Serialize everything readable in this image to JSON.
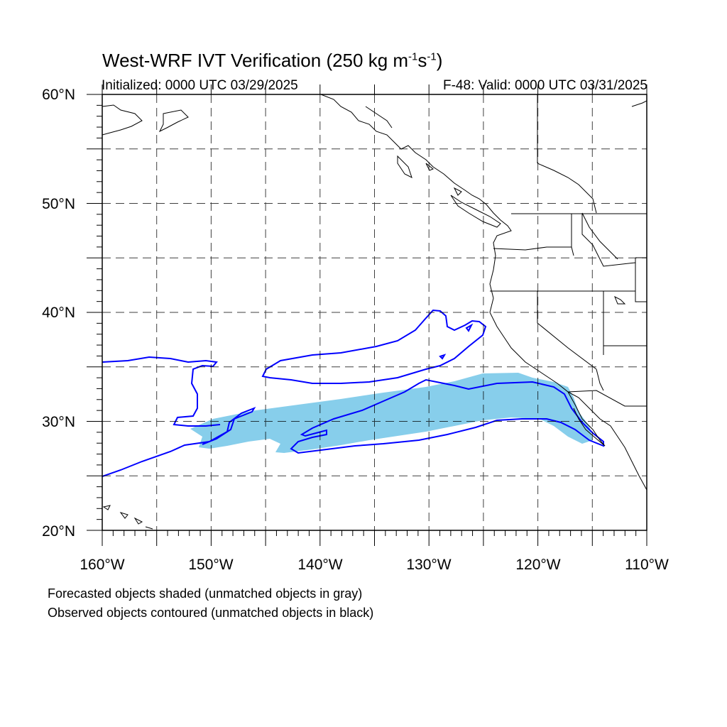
{
  "title": {
    "prefix": "West-WRF IVT Verification (250 kg m",
    "exp1": "-1",
    "mid": "s",
    "exp2": "-1",
    "suffix": ")"
  },
  "initialized": "Initialized: 0000 UTC 03/29/2025",
  "valid": "F-48: Valid: 0000 UTC 03/31/2025",
  "lat_labels": [
    "60°N",
    "50°N",
    "40°N",
    "30°N",
    "20°N"
  ],
  "lon_labels": [
    "160°W",
    "150°W",
    "140°W",
    "130°W",
    "120°W",
    "110°W"
  ],
  "notes": {
    "forecast": "Forecasted objects shaded (unmatched objects in gray)",
    "observed": "Observed objects contoured (unmatched objects in black)"
  },
  "map": {
    "lon_range": [
      -160,
      -110
    ],
    "lat_range": [
      20,
      60
    ],
    "grid_lons": [
      -155,
      -150,
      -145,
      -140,
      -135,
      -130,
      -125,
      -120,
      -115
    ],
    "grid_lats": [
      25,
      30,
      35,
      40,
      45,
      50,
      55
    ],
    "forecast_fill_color": "#87CEEB",
    "observed_contour_color": "#0000FF",
    "coastline_color": "#000000"
  }
}
